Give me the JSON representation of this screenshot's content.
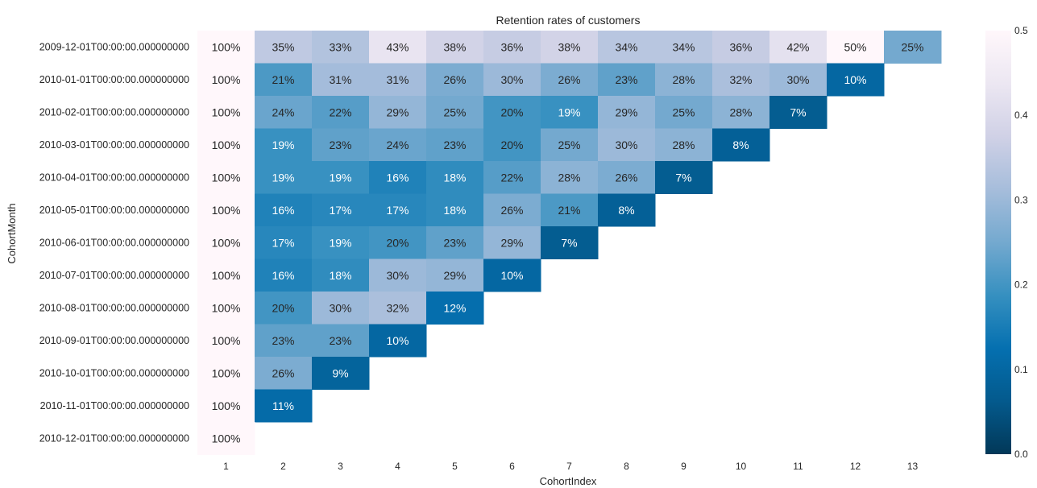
{
  "chart_data": {
    "type": "heatmap",
    "title": "Retention rates of customers",
    "xlabel": "CohortIndex",
    "ylabel": "CohortMonth",
    "x": [
      "1",
      "2",
      "3",
      "4",
      "5",
      "6",
      "7",
      "8",
      "9",
      "10",
      "11",
      "12",
      "13"
    ],
    "y": [
      "2009-12-01T00:00:00.000000000",
      "2010-01-01T00:00:00.000000000",
      "2010-02-01T00:00:00.000000000",
      "2010-03-01T00:00:00.000000000",
      "2010-04-01T00:00:00.000000000",
      "2010-05-01T00:00:00.000000000",
      "2010-06-01T00:00:00.000000000",
      "2010-07-01T00:00:00.000000000",
      "2010-08-01T00:00:00.000000000",
      "2010-09-01T00:00:00.000000000",
      "2010-10-01T00:00:00.000000000",
      "2010-11-01T00:00:00.000000000",
      "2010-12-01T00:00:00.000000000"
    ],
    "values": [
      [
        1.0,
        0.35,
        0.33,
        0.43,
        0.38,
        0.36,
        0.38,
        0.34,
        0.34,
        0.36,
        0.42,
        0.5,
        0.25
      ],
      [
        1.0,
        0.21,
        0.31,
        0.31,
        0.26,
        0.3,
        0.26,
        0.23,
        0.28,
        0.32,
        0.3,
        0.1
      ],
      [
        1.0,
        0.24,
        0.22,
        0.29,
        0.25,
        0.2,
        0.19,
        0.29,
        0.25,
        0.28,
        0.07
      ],
      [
        1.0,
        0.19,
        0.23,
        0.24,
        0.23,
        0.2,
        0.25,
        0.3,
        0.28,
        0.08
      ],
      [
        1.0,
        0.19,
        0.19,
        0.16,
        0.18,
        0.22,
        0.28,
        0.26,
        0.07
      ],
      [
        1.0,
        0.16,
        0.17,
        0.17,
        0.18,
        0.26,
        0.21,
        0.08
      ],
      [
        1.0,
        0.17,
        0.19,
        0.2,
        0.23,
        0.29,
        0.07
      ],
      [
        1.0,
        0.16,
        0.18,
        0.3,
        0.29,
        0.1
      ],
      [
        1.0,
        0.2,
        0.3,
        0.32,
        0.12
      ],
      [
        1.0,
        0.23,
        0.23,
        0.1
      ],
      [
        1.0,
        0.26,
        0.09
      ],
      [
        1.0,
        0.11
      ],
      [
        1.0
      ]
    ],
    "labels": [
      [
        "100%",
        "35%",
        "33%",
        "43%",
        "38%",
        "36%",
        "38%",
        "34%",
        "34%",
        "36%",
        "42%",
        "50%",
        "25%"
      ],
      [
        "100%",
        "21%",
        "31%",
        "31%",
        "26%",
        "30%",
        "26%",
        "23%",
        "28%",
        "32%",
        "30%",
        "10%"
      ],
      [
        "100%",
        "24%",
        "22%",
        "29%",
        "25%",
        "20%",
        "19%",
        "29%",
        "25%",
        "28%",
        "7%"
      ],
      [
        "100%",
        "19%",
        "23%",
        "24%",
        "23%",
        "20%",
        "25%",
        "30%",
        "28%",
        "8%"
      ],
      [
        "100%",
        "19%",
        "19%",
        "16%",
        "18%",
        "22%",
        "28%",
        "26%",
        "7%"
      ],
      [
        "100%",
        "16%",
        "17%",
        "17%",
        "18%",
        "26%",
        "21%",
        "8%"
      ],
      [
        "100%",
        "17%",
        "19%",
        "20%",
        "23%",
        "29%",
        "7%"
      ],
      [
        "100%",
        "16%",
        "18%",
        "30%",
        "29%",
        "10%"
      ],
      [
        "100%",
        "20%",
        "30%",
        "32%",
        "12%"
      ],
      [
        "100%",
        "23%",
        "23%",
        "10%"
      ],
      [
        "100%",
        "26%",
        "9%"
      ],
      [
        "100%",
        "11%"
      ],
      [
        "100%"
      ]
    ],
    "colorbar": {
      "min": 0.0,
      "max": 0.5,
      "ticks": [
        "0.0",
        "0.1",
        "0.2",
        "0.3",
        "0.4",
        "0.5"
      ],
      "colormap": "PuBu_r",
      "colors": [
        "#023858",
        "#045a8d",
        "#0570b0",
        "#3690c0",
        "#74a9cf",
        "#a6bddb",
        "#d0d1e6",
        "#ece7f2",
        "#fff7fb"
      ]
    }
  }
}
